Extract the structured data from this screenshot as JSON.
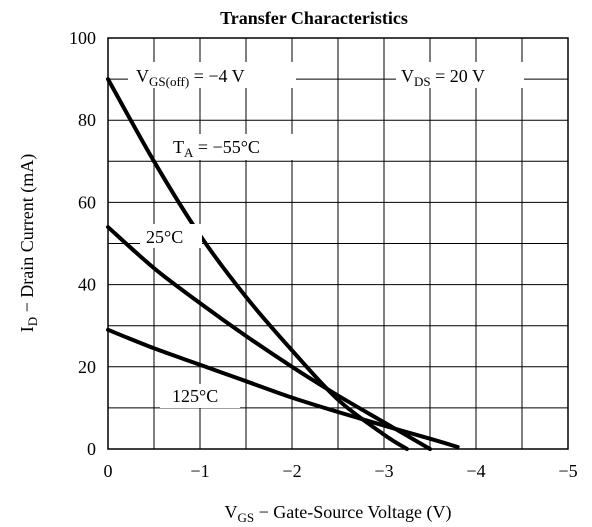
{
  "chart_data": {
    "type": "line",
    "title": "Transfer Characteristics",
    "xlabel": {
      "main": "V",
      "sub": "GS",
      "rest": " − Gate-Source Voltage (V)"
    },
    "ylabel": {
      "main": "I",
      "sub": "D",
      "rest": " − Drain Current (mA)"
    },
    "xlim": [
      0,
      -5
    ],
    "ylim": [
      0,
      100
    ],
    "x_ticks": [
      {
        "v": 0,
        "label": "0"
      },
      {
        "v": -1,
        "label": "−1"
      },
      {
        "v": -2,
        "label": "−2"
      },
      {
        "v": -3,
        "label": "−3"
      },
      {
        "v": -4,
        "label": "−4"
      },
      {
        "v": -5,
        "label": "−5"
      }
    ],
    "y_ticks": [
      {
        "v": 0,
        "label": "0"
      },
      {
        "v": 20,
        "label": "20"
      },
      {
        "v": 40,
        "label": "40"
      },
      {
        "v": 60,
        "label": "60"
      },
      {
        "v": 80,
        "label": "80"
      },
      {
        "v": 100,
        "label": "100"
      }
    ],
    "grid": true,
    "series": [
      {
        "name": "T_A = −55°C",
        "x": [
          0,
          -0.5,
          -1,
          -1.5,
          -2,
          -2.5,
          -3,
          -3.25
        ],
        "y": [
          90,
          70,
          52,
          37,
          24,
          12,
          3.5,
          0
        ]
      },
      {
        "name": "25°C",
        "x": [
          0,
          -0.5,
          -1,
          -1.5,
          -2,
          -2.5,
          -3,
          -3.5
        ],
        "y": [
          54,
          44,
          35.5,
          27.5,
          20,
          13,
          6.5,
          0
        ]
      },
      {
        "name": "125°C",
        "x": [
          0,
          -0.5,
          -1,
          -1.5,
          -2,
          -2.5,
          -3,
          -3.5,
          -3.8
        ],
        "y": [
          29,
          24.5,
          20.5,
          16.5,
          12.5,
          9,
          5.7,
          2.5,
          0.5
        ]
      }
    ],
    "annotations": {
      "vgs_off": {
        "main": "V",
        "sub": "GS(off)",
        "rest": " = −4 V"
      },
      "vds": {
        "main": "V",
        "sub": "DS",
        "rest": " = 20 V"
      },
      "ta_m55": {
        "main": "T",
        "sub": "A",
        "rest": " = −55°C"
      },
      "t25": "25°C",
      "t125": "125°C"
    }
  }
}
